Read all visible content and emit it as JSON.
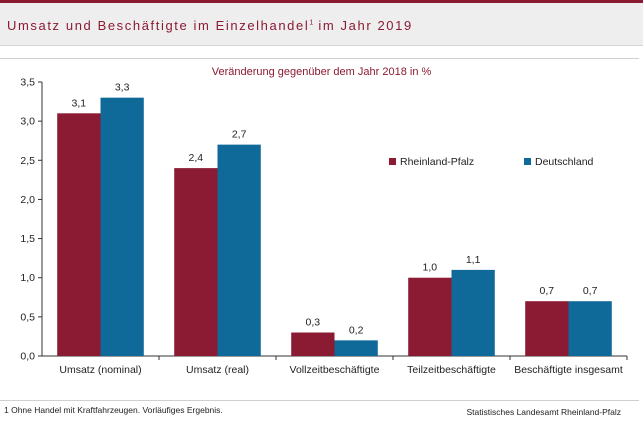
{
  "header": {
    "title_main": "Umsatz und Beschäftigte im Einzelhandel",
    "title_sup": "1",
    "title_tail": " im Jahr 2019"
  },
  "chart_data": {
    "type": "bar",
    "subtitle": "Veränderung gegenüber dem Jahr 2018 in %",
    "categories": [
      "Umsatz (nominal)",
      "Umsatz (real)",
      "Vollzeitbeschäftigte",
      "Teilzeitbeschäftigte",
      "Beschäftigte insgesamt"
    ],
    "series": [
      {
        "name": "Rheinland-Pfalz",
        "color": "#8b1a33",
        "values": [
          3.1,
          2.4,
          0.3,
          1.0,
          0.7
        ],
        "labels": [
          "3,1",
          "2,4",
          "0,3",
          "1,0",
          "0,7"
        ]
      },
      {
        "name": "Deutschland",
        "color": "#0f6a99",
        "values": [
          3.3,
          2.7,
          0.2,
          1.1,
          0.7
        ],
        "labels": [
          "3,3",
          "2,7",
          "0,2",
          "1,1",
          "0,7"
        ]
      }
    ],
    "ylim": [
      0,
      3.5
    ],
    "yticks": [
      0,
      0.5,
      1.0,
      1.5,
      2.0,
      2.5,
      3.0,
      3.5
    ],
    "ytick_labels": [
      "0,0",
      "0,5",
      "1,0",
      "1,5",
      "2,0",
      "2,5",
      "3,0",
      "3,5"
    ],
    "legend_position": "right",
    "grid": false
  },
  "footer": {
    "footnote": "1 Ohne Handel mit Kraftfahrzeugen.  Vorläufiges Ergebnis.",
    "source": "Statistisches Landesamt Rheinland-Pfalz"
  }
}
